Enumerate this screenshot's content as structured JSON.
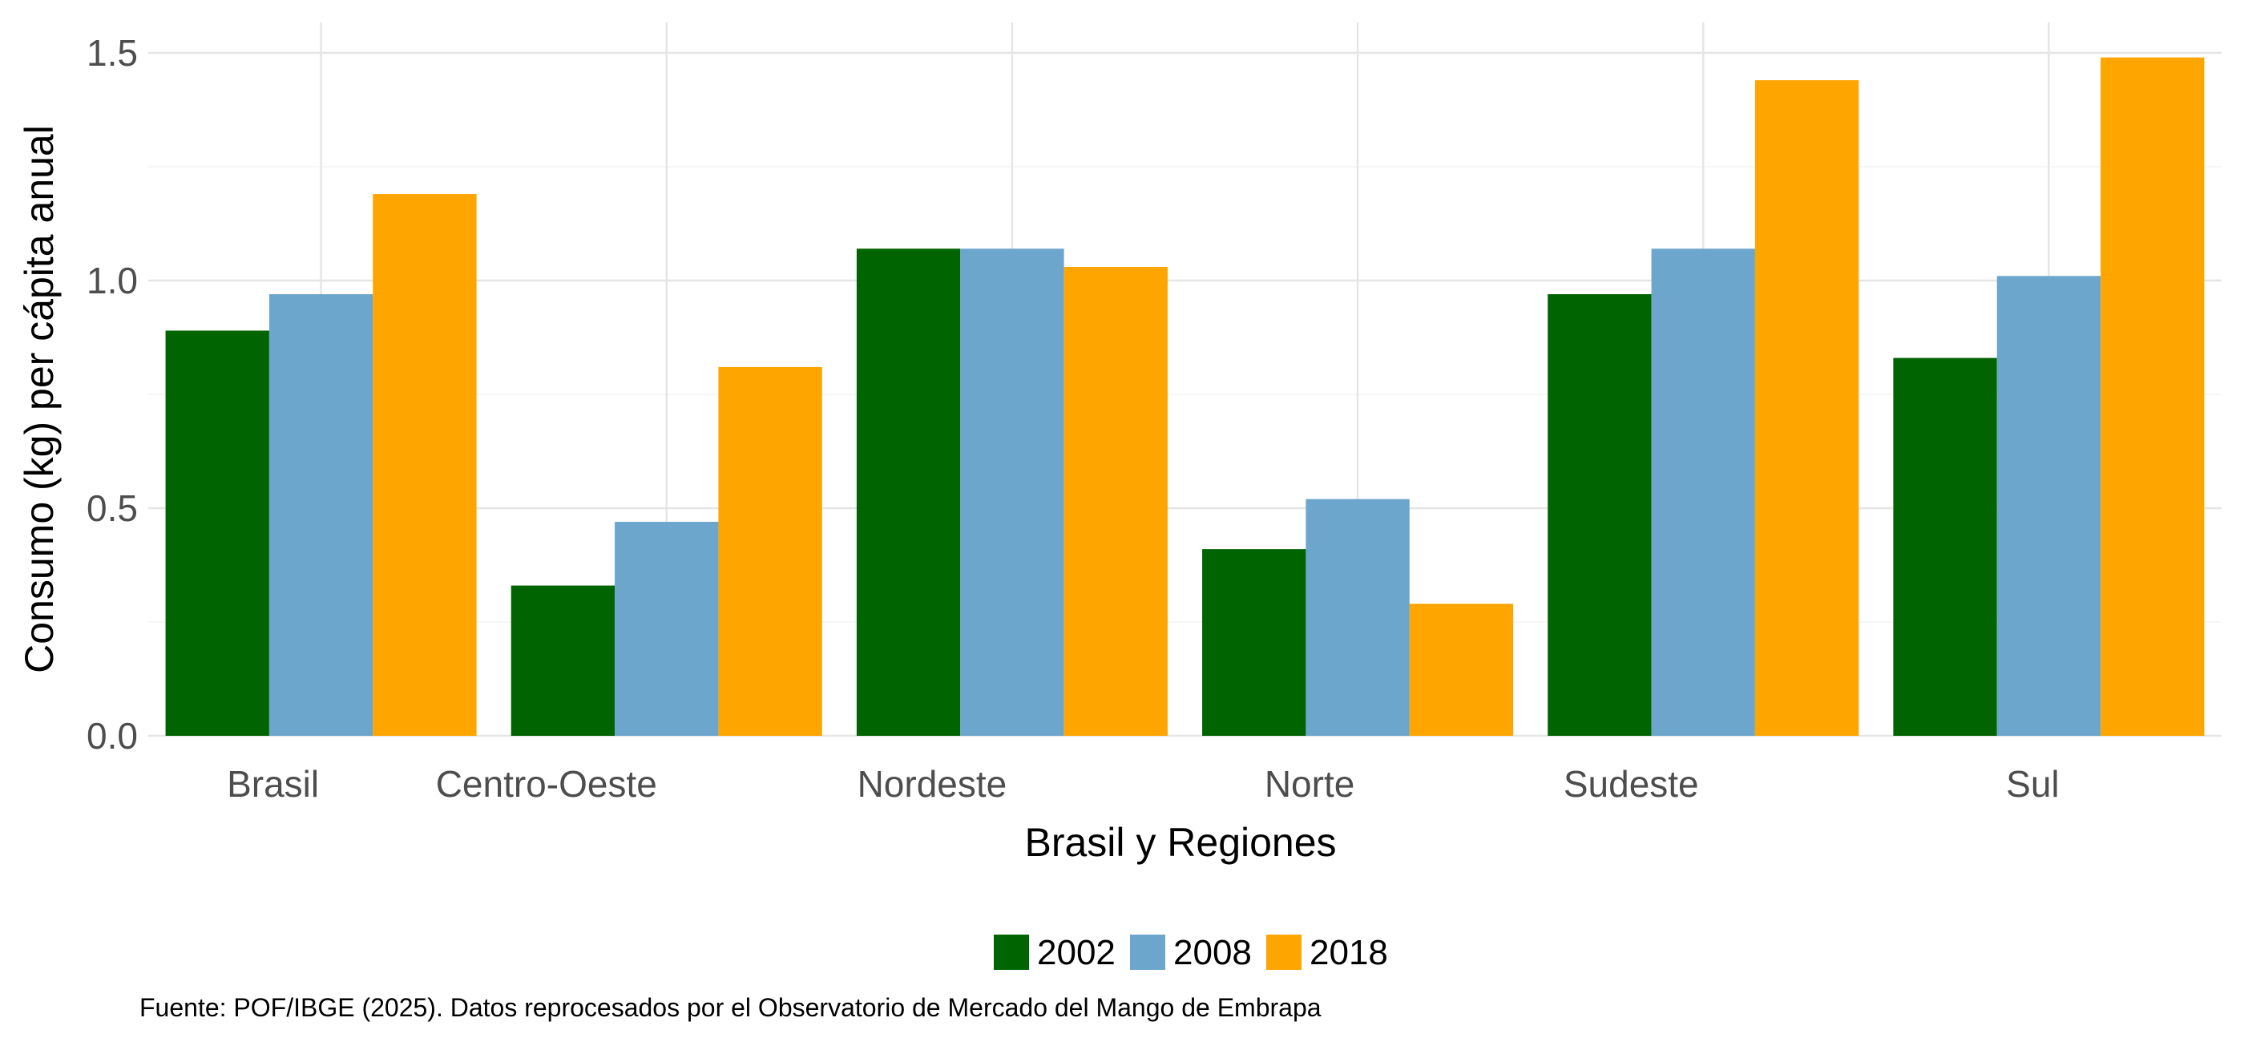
{
  "chart_data": {
    "type": "bar",
    "title": "",
    "xlabel": "Brasil y Regiones",
    "ylabel": "Consumo (kg) per cápita anual",
    "categories": [
      "Brasil",
      "Centro-Oeste",
      "Nordeste",
      "Norte",
      "Sudeste",
      "Sul"
    ],
    "series": [
      {
        "name": "2002",
        "color": "#006400",
        "values": [
          0.89,
          0.33,
          1.07,
          0.41,
          0.97,
          0.83
        ]
      },
      {
        "name": "2008",
        "color": "#6CA6CD",
        "values": [
          0.97,
          0.47,
          1.07,
          0.52,
          1.07,
          1.01
        ]
      },
      {
        "name": "2018",
        "color": "#FFA500",
        "values": [
          1.19,
          0.81,
          1.03,
          0.29,
          1.44,
          1.49
        ]
      }
    ],
    "ylim": [
      0,
      1.5
    ],
    "yticks": [
      "0.0",
      "0.5",
      "1.0",
      "1.5"
    ],
    "grid": true,
    "legend_position": "bottom",
    "caption": "Fuente: POF/IBGE (2025). Datos reprocesados por el Observatorio de Mercado del Mango de Embrapa"
  }
}
